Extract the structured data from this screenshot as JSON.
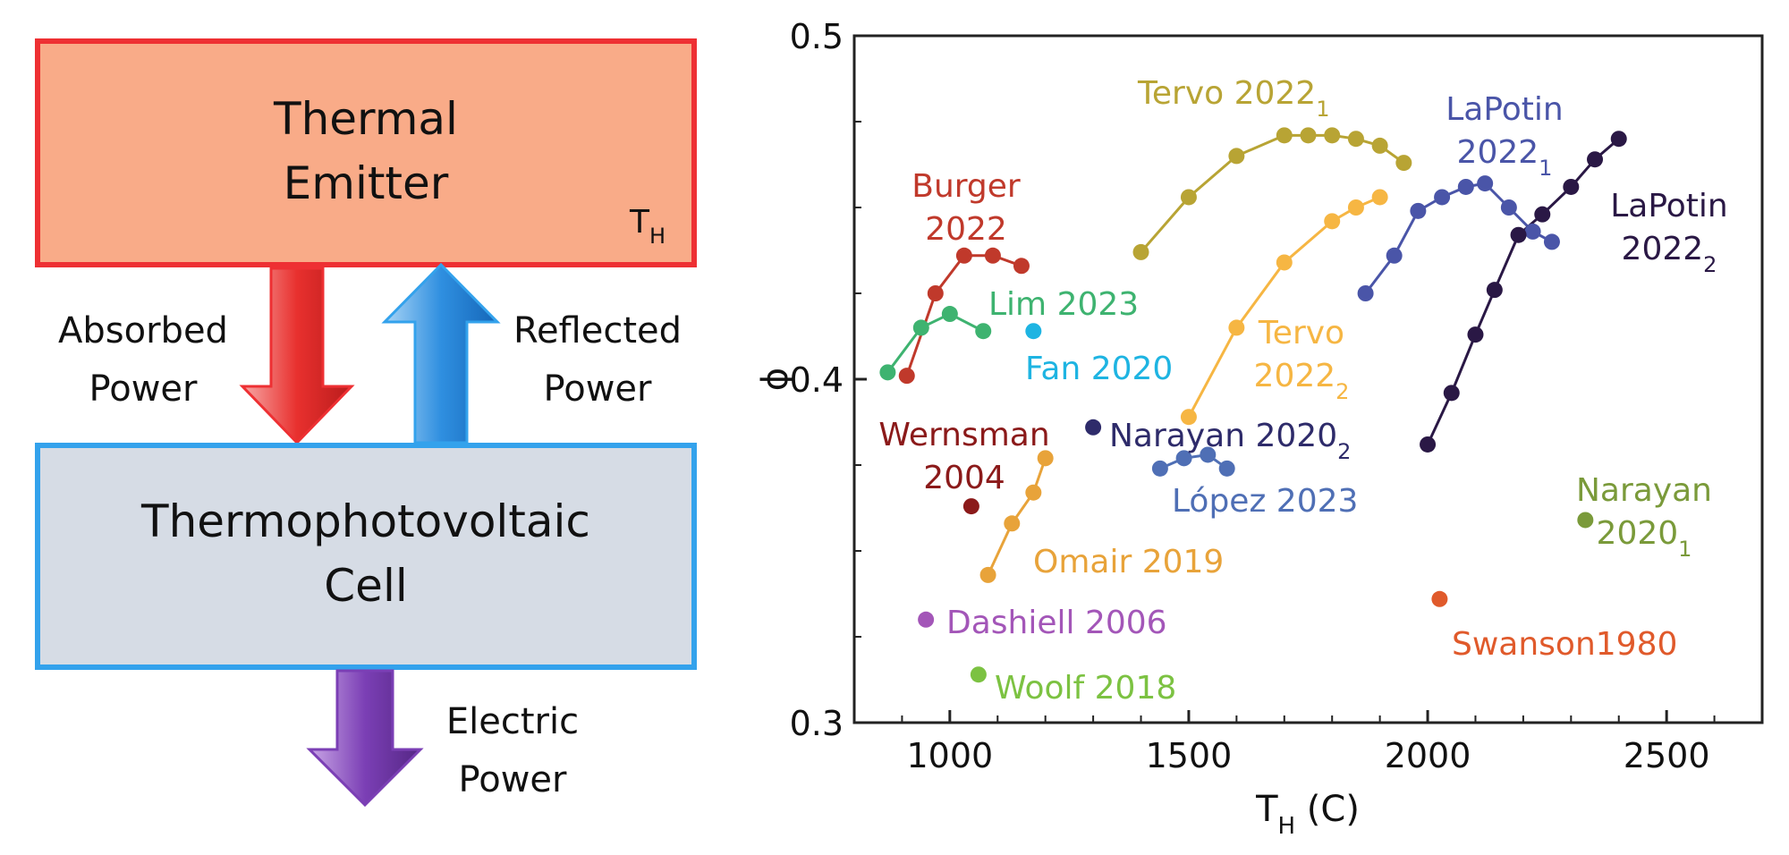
{
  "diagram": {
    "emitter_line1": "Thermal",
    "emitter_line2": "Emitter",
    "emitter_temp_main": "T",
    "emitter_temp_sub": "H",
    "cell_line1": "Thermophotovoltaic",
    "cell_line2": "Cell",
    "absorbed_line1": "Absorbed",
    "absorbed_line2": "Power",
    "reflected_line1": "Reflected",
    "reflected_line2": "Power",
    "electric_line1": "Electric",
    "electric_line2": "Power",
    "colors": {
      "emitter_fill": "#F9AB88",
      "emitter_border": "#EE3033",
      "cell_fill": "#D6DCE5",
      "cell_border": "#33A2EC",
      "absorbed_arrow": "#E8302E",
      "reflected_arrow": "#2F8FE0",
      "electric_arrow": "#7B3FB5"
    }
  },
  "chart_data": {
    "type": "scatter",
    "title": "",
    "xlabel_main": "T",
    "xlabel_sub": "H",
    "xlabel_unit": " (C)",
    "ylabel": "ϕ",
    "xlim": [
      800,
      2700
    ],
    "ylim": [
      0.3,
      0.5
    ],
    "x_ticks": [
      1000,
      1500,
      2000,
      2500
    ],
    "x_tick_labels": [
      "1000",
      "1500",
      "2000",
      "2500"
    ],
    "y_ticks": [
      0.3,
      0.4,
      0.5
    ],
    "y_tick_labels": [
      "0.3",
      "0.4",
      "0.5"
    ],
    "grid": false,
    "series": [
      {
        "id": "burger",
        "name": "Burger 2022",
        "label_lines": [
          "Burger",
          "2022"
        ],
        "color": "#C0392B",
        "x": [
          910,
          970,
          1030,
          1090,
          1150
        ],
        "y": [
          0.401,
          0.425,
          0.436,
          0.436,
          0.433
        ]
      },
      {
        "id": "lim",
        "name": "Lim 2023",
        "label_lines": [
          "Lim 2023"
        ],
        "color": "#3EB370",
        "x": [
          870,
          940,
          1000,
          1070
        ],
        "y": [
          0.402,
          0.415,
          0.419,
          0.414
        ]
      },
      {
        "id": "fan",
        "name": "Fan 2020",
        "label_lines": [
          "Fan 2020"
        ],
        "color": "#1EB4E2",
        "x": [
          1175
        ],
        "y": [
          0.414
        ]
      },
      {
        "id": "wernsman",
        "name": "Wernsman 2004",
        "label_lines": [
          "Wernsman",
          "2004"
        ],
        "color": "#8B1A1A",
        "x": [
          1045
        ],
        "y": [
          0.363
        ]
      },
      {
        "id": "omair",
        "name": "Omair 2019",
        "label_lines": [
          "Omair 2019"
        ],
        "color": "#E8A33A",
        "x": [
          1080,
          1130,
          1175,
          1200
        ],
        "y": [
          0.343,
          0.358,
          0.367,
          0.377
        ]
      },
      {
        "id": "dashiell",
        "name": "Dashiell 2006",
        "label_lines": [
          "Dashiell 2006"
        ],
        "color": "#A356B8",
        "x": [
          950
        ],
        "y": [
          0.33
        ]
      },
      {
        "id": "woolf",
        "name": "Woolf 2018",
        "label_lines": [
          "Woolf 2018"
        ],
        "color": "#7CC242",
        "x": [
          1060
        ],
        "y": [
          0.314
        ]
      },
      {
        "id": "tervo1",
        "name": "Tervo 2022_1",
        "label_lines": [
          "Tervo 2022"
        ],
        "label_sub": "1",
        "color": "#B8A434",
        "x": [
          1400,
          1500,
          1600,
          1700,
          1750,
          1800,
          1850,
          1900,
          1950
        ],
        "y": [
          0.437,
          0.453,
          0.465,
          0.471,
          0.471,
          0.471,
          0.47,
          0.468,
          0.463
        ]
      },
      {
        "id": "tervo2",
        "name": "Tervo 2022_2",
        "label_lines": [
          "Tervo",
          "2022"
        ],
        "label_sub": "2",
        "color": "#F6B643",
        "x": [
          1500,
          1600,
          1700,
          1800,
          1850,
          1900
        ],
        "y": [
          0.389,
          0.415,
          0.434,
          0.446,
          0.45,
          0.453
        ]
      },
      {
        "id": "narayan2",
        "name": "Narayan 2020_2",
        "label_lines": [
          "Narayan 2020"
        ],
        "label_sub": "2",
        "color": "#2E2B6A",
        "x": [
          1300
        ],
        "y": [
          0.386
        ]
      },
      {
        "id": "lopez",
        "name": "López 2023",
        "label_lines": [
          "López 2023"
        ],
        "color": "#4F6FB5",
        "x": [
          1440,
          1490,
          1540,
          1580
        ],
        "y": [
          0.374,
          0.377,
          0.378,
          0.374
        ]
      },
      {
        "id": "lapotin1",
        "name": "LaPotin 2022_1",
        "label_lines": [
          "LaPotin",
          "2022"
        ],
        "label_sub": "1",
        "color": "#4A55A8",
        "x": [
          1870,
          1930,
          1980,
          2030,
          2080,
          2120,
          2170,
          2220,
          2260
        ],
        "y": [
          0.425,
          0.436,
          0.449,
          0.453,
          0.456,
          0.457,
          0.45,
          0.443,
          0.44
        ]
      },
      {
        "id": "lapotin2",
        "name": "LaPotin 2022_2",
        "label_lines": [
          "LaPotin",
          "2022"
        ],
        "label_sub": "2",
        "color": "#2A1845",
        "x": [
          2000,
          2050,
          2100,
          2140,
          2190,
          2240,
          2300,
          2350,
          2400
        ],
        "y": [
          0.381,
          0.396,
          0.413,
          0.426,
          0.442,
          0.448,
          0.456,
          0.464,
          0.47
        ]
      },
      {
        "id": "narayan1",
        "name": "Narayan 2020_1",
        "label_lines": [
          "Narayan",
          "2020"
        ],
        "label_sub": "1",
        "color": "#7A9A3A",
        "x": [
          2330
        ],
        "y": [
          0.359
        ]
      },
      {
        "id": "swanson",
        "name": "Swanson1980",
        "label_lines": [
          "Swanson1980"
        ],
        "color": "#E05A2B",
        "x": [
          2025
        ],
        "y": [
          0.336
        ]
      }
    ]
  }
}
